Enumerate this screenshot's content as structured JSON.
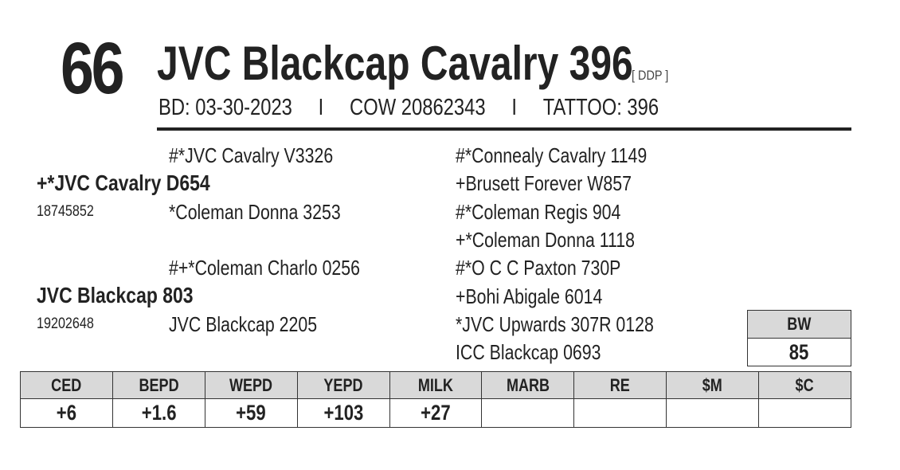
{
  "lot_number": "66",
  "animal_name": "JVC Blackcap Cavalry 396",
  "tag": "[ DDP ]",
  "info": {
    "bd": "BD: 03-30-2023",
    "sep": "I",
    "cow": "COW 20862343",
    "tattoo": "TATTOO: 396"
  },
  "pedigree": {
    "sire_sire": "#*JVC Cavalry V3326",
    "sire": "+*JVC Cavalry D654",
    "sire_reg": "18745852",
    "sire_dam": "*Coleman Donna  3253",
    "dam_sire": "#+*Coleman Charlo 0256",
    "dam": "JVC Blackcap 803",
    "dam_reg": "19202648",
    "dam_dam": "JVC Blackcap 2205",
    "g1": "#*Connealy Cavalry 1149",
    "g2": "+Brusett Forever W857",
    "g3": "#*Coleman Regis 904",
    "g4": "+*Coleman Donna  1118",
    "g5": "#*O C C Paxton 730P",
    "g6": "+Bohi Abigale 6014",
    "g7": "*JVC Upwards 307R 0128",
    "g8": "ICC Blackcap 0693"
  },
  "bw": {
    "label": "BW",
    "value": "85"
  },
  "epd": {
    "headers": [
      "CED",
      "BEPD",
      "WEPD",
      "YEPD",
      "MILK",
      "MARB",
      "RE",
      "$M",
      "$C"
    ],
    "values": [
      "+6",
      "+1.6",
      "+59",
      "+103",
      "+27",
      "",
      "",
      "",
      ""
    ]
  }
}
